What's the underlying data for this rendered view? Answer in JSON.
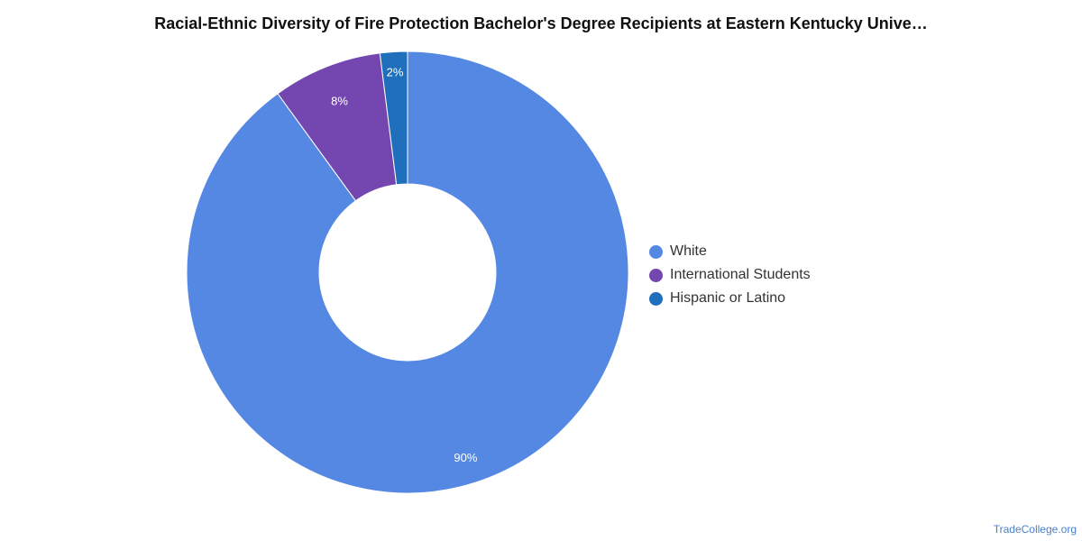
{
  "title": "Racial-Ethnic Diversity of Fire Protection Bachelor's Degree Recipients at Eastern Kentucky Unive…",
  "source": "TradeCollege.org",
  "chart_data": {
    "type": "pie",
    "donut": true,
    "legend_position": "right",
    "slices": [
      {
        "label": "White",
        "value": 90,
        "display": "90%",
        "color": "#5588e3"
      },
      {
        "label": "International Students",
        "value": 8,
        "display": "8%",
        "color": "#7446b0"
      },
      {
        "label": "Hispanic or Latino",
        "value": 2,
        "display": "2%",
        "color": "#1f6fbc"
      }
    ]
  }
}
